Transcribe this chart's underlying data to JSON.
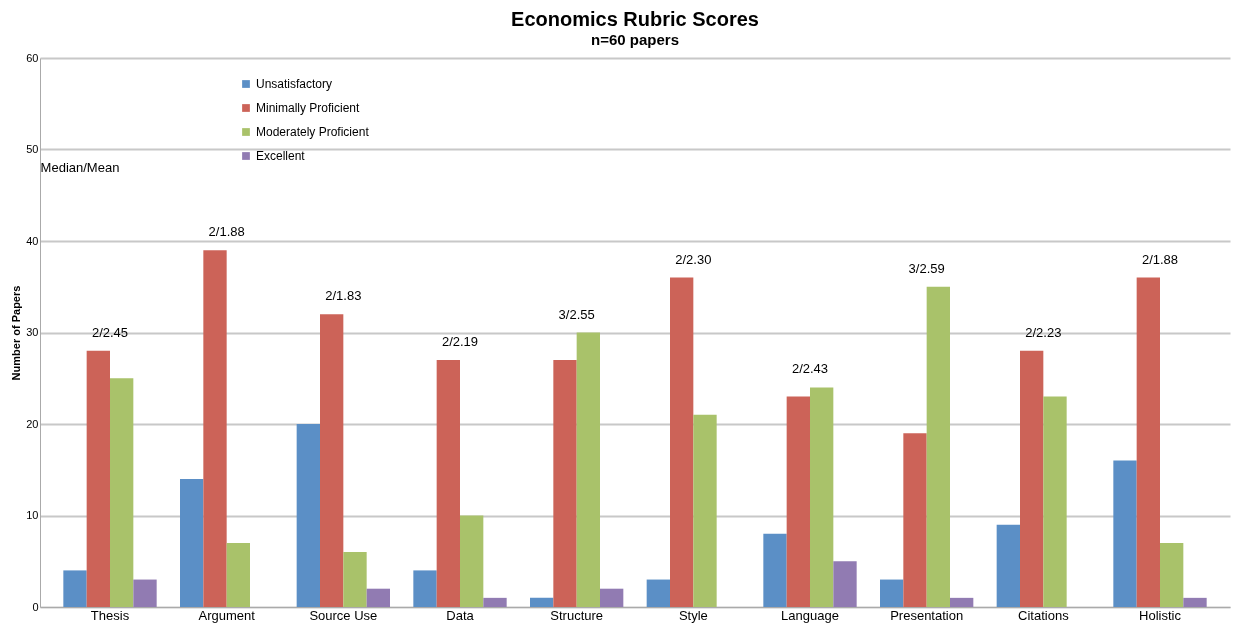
{
  "chart_data": {
    "type": "bar",
    "title": "Economics Rubric Scores",
    "subtitle": "n=60 papers",
    "ylabel": "Number of Papers",
    "categories": [
      "Thesis",
      "Argument",
      "Source Use",
      "Data",
      "Structure",
      "Style",
      "Language",
      "Presentation",
      "Citations",
      "Holistic"
    ],
    "series": [
      {
        "name": "Unsatisfactory",
        "color": "#5b8fc6",
        "values": [
          4,
          14,
          20,
          4,
          1,
          3,
          8,
          3,
          9,
          16
        ]
      },
      {
        "name": "Minimally Proficient",
        "color": "#cc6358",
        "values": [
          28,
          39,
          32,
          27,
          27,
          36,
          23,
          19,
          28,
          36
        ]
      },
      {
        "name": "Moderately Proficient",
        "color": "#a9c26a",
        "values": [
          25,
          7,
          6,
          10,
          30,
          21,
          24,
          35,
          23,
          7
        ]
      },
      {
        "name": "Excellent",
        "color": "#917bb2",
        "values": [
          3,
          0,
          2,
          1,
          2,
          0,
          5,
          1,
          0,
          1
        ]
      }
    ],
    "ylim": [
      0,
      60
    ],
    "yticks": [
      0,
      10,
      20,
      30,
      40,
      50,
      60
    ],
    "grid": "y",
    "legend": "top left",
    "annotations": [
      "Median/Mean",
      {
        "text": "2/2.45",
        "x": "Thesis",
        "y": 28
      },
      {
        "text": "2/1.88",
        "x": "Argument",
        "y": 39
      },
      {
        "text": "2/1.83",
        "x": "Source Use",
        "y": 32
      },
      {
        "text": "2/2.19",
        "x": "Data",
        "y": 27
      },
      {
        "text": "3/2.55",
        "x": "Structure",
        "y": 30
      },
      {
        "text": "2/2.30",
        "x": "Style",
        "y": 36
      },
      {
        "text": "2/2.43",
        "x": "Language",
        "y": 24
      },
      {
        "text": "3/2.59",
        "x": "Presentation",
        "y": 35
      },
      {
        "text": "2/2.23",
        "x": "Citations",
        "y": 28
      },
      {
        "text": "2/1.88",
        "x": "Holistic",
        "y": 36
      }
    ]
  }
}
